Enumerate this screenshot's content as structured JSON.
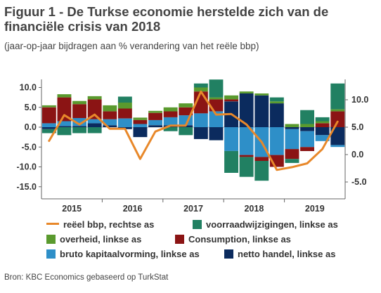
{
  "title": "Figuur 1 - De Turkse economie herstelde zich van de financiële crisis van 2018",
  "subtitle": "(jaar-op-jaar bijdragen aan % verandering van het reële bbp)",
  "source": "Bron: KBC Economics gebaseerd op TurkStat",
  "colors": {
    "netto_handel": "#0b2b5e",
    "bruto_kapitaalvorming": "#2e8fc8",
    "consumption": "#8b1414",
    "overheid": "#5a9a2e",
    "voorraadwijzigingen": "#218062",
    "reeel_bbp": "#e8882a"
  },
  "legend": [
    {
      "key": "reeel_bbp",
      "label": "reëel bbp, rechtse as",
      "kind": "line"
    },
    {
      "key": "voorraadwijzigingen",
      "label": "voorraadwijzigingen, linkse as",
      "kind": "box"
    },
    {
      "key": "overheid",
      "label": "overheid, linkse as",
      "kind": "box"
    },
    {
      "key": "consumption",
      "label": "Consumption, linkse as",
      "kind": "box"
    },
    {
      "key": "bruto_kapitaalvorming",
      "label": "bruto kapitaalvorming, linkse as",
      "kind": "box"
    },
    {
      "key": "netto_handel",
      "label": "netto handel, linkse as",
      "kind": "box"
    }
  ],
  "chart_data": {
    "type": "bar",
    "stacked": true,
    "categories": [
      "2015-Q1",
      "2015-Q2",
      "2015-Q3",
      "2015-Q4",
      "2016-Q1",
      "2016-Q2",
      "2016-Q3",
      "2016-Q4",
      "2017-Q1",
      "2017-Q2",
      "2017-Q3",
      "2017-Q4",
      "2018-Q1",
      "2018-Q2",
      "2018-Q3",
      "2018-Q4",
      "2019-Q1",
      "2019-Q2",
      "2019-Q3",
      "2019-Q4"
    ],
    "year_labels": [
      "2015",
      "2016",
      "2017",
      "2018",
      "2019"
    ],
    "y_left": {
      "ticks": [
        "10.0",
        "5.0",
        "0.0",
        "-5.0",
        "-10.0",
        "-15.0"
      ],
      "ylim": [
        -15,
        12
      ]
    },
    "y_right": {
      "ticks": [
        "10.0",
        "5.0",
        "0.0",
        "-5.0"
      ],
      "ylim": [
        -5,
        12.5
      ]
    },
    "series": [
      {
        "key": "netto_handel",
        "name": "netto handel, linkse as",
        "values": [
          -0.5,
          0.3,
          0.3,
          1.0,
          0.5,
          -0.5,
          -2.5,
          0.5,
          0.5,
          0.5,
          -3.0,
          -3.3,
          6.5,
          8.5,
          8.0,
          6.0,
          -0.5,
          -1.0,
          -2.0,
          -4.5
        ]
      },
      {
        "key": "bruto_kapitaalvorming",
        "name": "bruto kapitaalvorming, linkse as",
        "values": [
          1.0,
          1.2,
          2.0,
          1.0,
          1.5,
          2.2,
          0.8,
          1.3,
          2.0,
          2.5,
          3.5,
          4.0,
          -6.0,
          -7.0,
          -7.5,
          -7.0,
          -5.0,
          -4.0,
          -1.5,
          -0.5
        ]
      },
      {
        "key": "consumption",
        "name": "Consumption, linkse as",
        "values": [
          4.0,
          6.0,
          3.5,
          5.0,
          2.0,
          2.5,
          1.0,
          1.8,
          1.5,
          2.0,
          5.5,
          3.0,
          0.5,
          -0.5,
          -1.0,
          -3.0,
          -2.5,
          -1.0,
          1.0,
          4.0
        ]
      },
      {
        "key": "overheid",
        "name": "overheid, linkse as",
        "values": [
          0.5,
          0.8,
          0.8,
          0.8,
          1.5,
          1.5,
          0.6,
          0.5,
          1.0,
          1.0,
          1.0,
          0.5,
          1.0,
          0.5,
          0.5,
          0.5,
          0.8,
          0.8,
          0.5,
          0.5
        ]
      },
      {
        "key": "voorraadwijzigingen",
        "name": "voorraadwijzigingen, linkse as",
        "values": [
          -1.0,
          -2.0,
          -1.5,
          -1.5,
          0,
          1.5,
          0,
          0,
          -1.0,
          -2.0,
          1.0,
          4.5,
          -5.5,
          -5.0,
          -5.0,
          1.0,
          -1.0,
          3.5,
          1.0,
          6.5
        ]
      }
    ],
    "line": {
      "key": "reeel_bbp",
      "name": "reëel bbp, rechtse as",
      "axis": "right",
      "values": [
        2.5,
        7.2,
        5.5,
        7.3,
        4.7,
        4.7,
        -0.8,
        4.2,
        5.3,
        5.3,
        11.5,
        7.3,
        7.4,
        5.5,
        2.3,
        -2.8,
        -2.3,
        -1.6,
        1.0,
        6.0
      ]
    }
  }
}
